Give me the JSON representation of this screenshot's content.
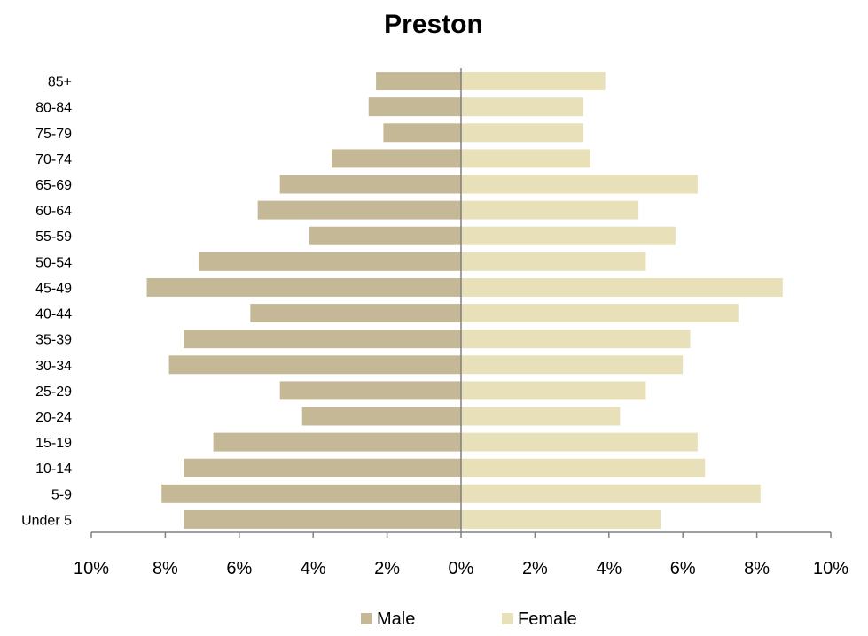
{
  "chart_data": {
    "type": "bar",
    "orientation": "horizontal",
    "subtype": "population-pyramid",
    "title": "Preston",
    "xlabel": "",
    "ylabel": "",
    "xlim": [
      -10,
      10
    ],
    "x_ticks": [
      -10,
      -8,
      -6,
      -4,
      -2,
      0,
      2,
      4,
      6,
      8,
      10
    ],
    "x_tick_labels": [
      "10%",
      "8%",
      "6%",
      "4%",
      "2%",
      "0%",
      "2%",
      "4%",
      "6%",
      "8%",
      "10%"
    ],
    "categories": [
      "Under 5",
      "5-9",
      "10-14",
      "15-19",
      "20-24",
      "25-29",
      "30-34",
      "35-39",
      "40-44",
      "45-49",
      "50-54",
      "55-59",
      "60-64",
      "65-69",
      "70-74",
      "75-79",
      "80-84",
      "85+"
    ],
    "series": [
      {
        "name": "Male",
        "color": "#c4b896",
        "values": [
          7.5,
          8.1,
          7.5,
          6.7,
          4.3,
          4.9,
          7.9,
          7.5,
          5.7,
          8.5,
          7.1,
          4.1,
          5.5,
          4.9,
          3.5,
          2.1,
          2.5,
          2.3
        ]
      },
      {
        "name": "Female",
        "color": "#e8e0b8",
        "values": [
          5.4,
          8.1,
          6.6,
          6.4,
          4.3,
          5.0,
          6.0,
          6.2,
          7.5,
          8.7,
          5.0,
          5.8,
          4.8,
          6.4,
          3.5,
          3.3,
          3.3,
          3.9
        ]
      }
    ],
    "legend": {
      "position": "bottom"
    },
    "grid": false
  }
}
